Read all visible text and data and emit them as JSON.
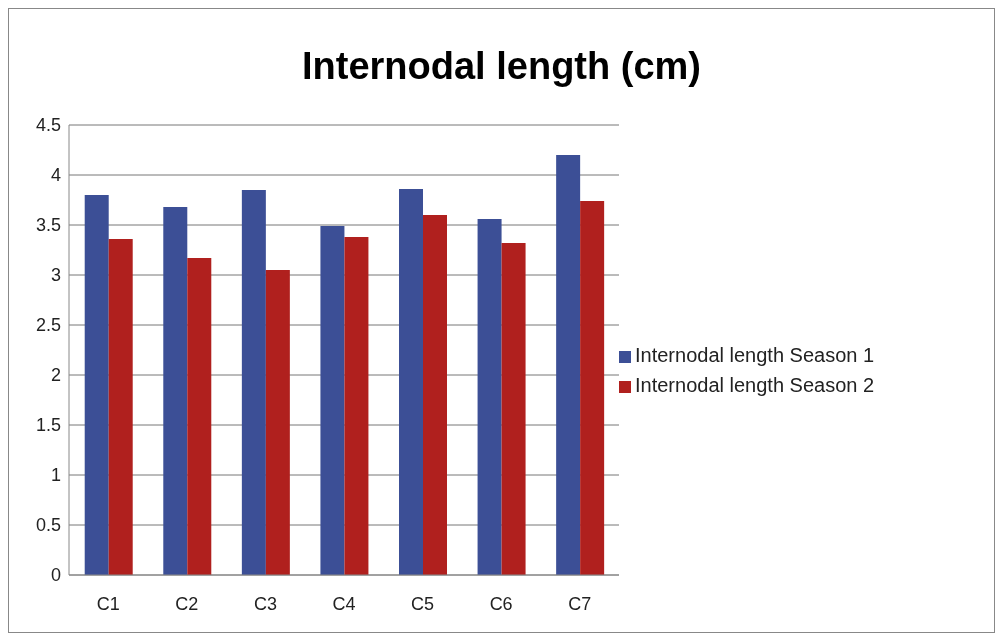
{
  "chart_data": {
    "type": "bar",
    "title": "Internodal length (cm)",
    "categories": [
      "C1",
      "C2",
      "C3",
      "C4",
      "C5",
      "C6",
      "C7"
    ],
    "series": [
      {
        "name": "Internodal length Season 1",
        "color": "#3c4f96",
        "values": [
          3.8,
          3.68,
          3.85,
          3.49,
          3.86,
          3.56,
          4.2
        ]
      },
      {
        "name": "Internodal length Season 2",
        "color": "#b0201e",
        "values": [
          3.36,
          3.17,
          3.05,
          3.38,
          3.6,
          3.32,
          3.74
        ]
      }
    ],
    "ylim": [
      0,
      4.5
    ],
    "yticks": [
      0,
      0.5,
      1,
      1.5,
      2,
      2.5,
      3,
      3.5,
      4,
      4.5
    ],
    "grid": "y",
    "legend": "right"
  }
}
